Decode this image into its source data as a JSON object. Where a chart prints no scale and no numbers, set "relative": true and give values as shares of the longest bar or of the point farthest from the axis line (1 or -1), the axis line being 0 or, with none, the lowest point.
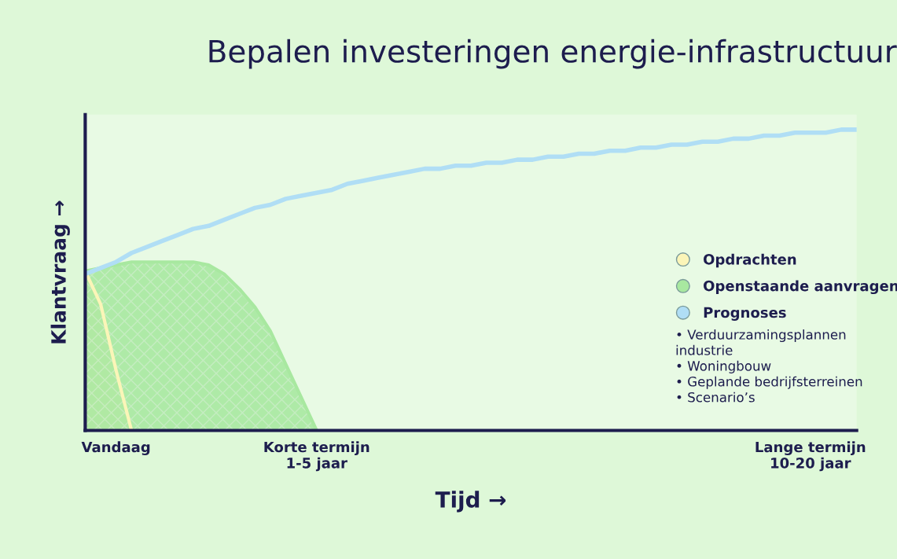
{
  "chart_data": {
    "type": "line",
    "title": "Bepalen investeringen energie-infrastructuur",
    "xlabel": "Tijd →",
    "ylabel": "Klantvraag →",
    "relative": true,
    "legend": "right",
    "categories": [
      null,
      null,
      "Vandaag",
      null,
      null,
      null,
      null,
      null,
      null,
      null,
      null,
      null,
      null,
      null,
      null,
      "Korte termijn\n1-5 jaar",
      null,
      null,
      null,
      null,
      null,
      null,
      null,
      null,
      null,
      null,
      null,
      null,
      null,
      null,
      null,
      null,
      null,
      null,
      null,
      null,
      null,
      null,
      null,
      null,
      null,
      null,
      null,
      null,
      null,
      null,
      null,
      "Lange termijn\n10-20 jaar",
      null,
      null,
      null
    ],
    "series": [
      {
        "name": "Opdrachten",
        "type": "area",
        "color": "#fbf5b8",
        "values": [
          0.53,
          0.42,
          0.2,
          0,
          null,
          null,
          null,
          null,
          null,
          null,
          null,
          null,
          null,
          null,
          null,
          null,
          null,
          null,
          null,
          null,
          null,
          null,
          null,
          null,
          null,
          null,
          null,
          null,
          null,
          null,
          null,
          null,
          null,
          null,
          null,
          null,
          null,
          null,
          null,
          null,
          null,
          null,
          null,
          null,
          null,
          null,
          null,
          null,
          null,
          null,
          null
        ]
      },
      {
        "name": "Openstaande aanvragen",
        "type": "area",
        "color": "#a8e8a0",
        "values": [
          0.53,
          0.54,
          0.55,
          0.56,
          0.56,
          0.56,
          0.56,
          0.56,
          0.55,
          0.52,
          0.47,
          0.41,
          0.33,
          0.22,
          0.11,
          0,
          null,
          null,
          null,
          null,
          null,
          null,
          null,
          null,
          null,
          null,
          null,
          null,
          null,
          null,
          null,
          null,
          null,
          null,
          null,
          null,
          null,
          null,
          null,
          null,
          null,
          null,
          null,
          null,
          null,
          null,
          null,
          null,
          null,
          null,
          null
        ]
      },
      {
        "name": "Prognoses",
        "color": "#b0def5",
        "values": [
          0.52,
          0.54,
          0.56,
          0.59,
          0.61,
          0.63,
          0.65,
          0.67,
          0.68,
          0.7,
          0.72,
          0.74,
          0.75,
          0.77,
          0.78,
          0.79,
          0.8,
          0.82,
          0.83,
          0.84,
          0.85,
          0.86,
          0.87,
          0.87,
          0.88,
          0.88,
          0.89,
          0.89,
          0.9,
          0.9,
          0.91,
          0.91,
          0.92,
          0.92,
          0.93,
          0.93,
          0.94,
          0.94,
          0.95,
          0.95,
          0.96,
          0.96,
          0.97,
          0.97,
          0.98,
          0.98,
          0.99,
          0.99,
          0.99,
          1.0,
          1.0
        ]
      }
    ],
    "annotations": [
      "• Verduurzamingsplannen\nindustrie\n• Woningbouw\n• Geplande bedrijfsterreinen\n• Scenario’s"
    ]
  }
}
